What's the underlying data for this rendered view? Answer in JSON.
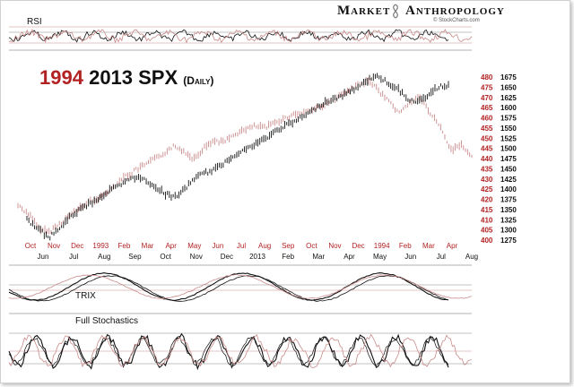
{
  "header": {
    "brand_left": "Market",
    "brand_right": "Anthropology",
    "logo_icon": "dna-helix-icon",
    "source": "© StockCharts.com"
  },
  "panels": {
    "rsi_label": "RSI",
    "trix_label": "TRIX",
    "stoch_label": "Full Stochastics"
  },
  "chart_data": {
    "type": "line",
    "title": {
      "year_1994": "1994",
      "year_2013": "2013 SPX",
      "freq": "(Daily)"
    },
    "colors": {
      "series_1994": "#c98a8a",
      "series_2013": "#111111",
      "axis_1994": "#b22222",
      "axis_2013": "#111111"
    },
    "x_top_labels": [
      "Oct",
      "Nov",
      "Dec",
      "1993",
      "Feb",
      "Mar",
      "Apr",
      "May",
      "Jun",
      "Jul",
      "Aug",
      "Sep",
      "Oct",
      "Nov",
      "Dec",
      "1994",
      "Feb",
      "Mar",
      "Apr"
    ],
    "x_bottom_labels": [
      "Jun",
      "Jul",
      "Aug",
      "Sep",
      "Oct",
      "Nov",
      "Dec",
      "2013",
      "Feb",
      "Mar",
      "Apr",
      "May",
      "Jun",
      "Jul",
      "Aug"
    ],
    "y_1994": [
      400,
      405,
      410,
      415,
      420,
      425,
      430,
      435,
      440,
      445,
      450,
      455,
      460,
      465,
      470,
      475,
      480
    ],
    "y_2013": [
      1275,
      1300,
      1325,
      1350,
      1375,
      1400,
      1425,
      1450,
      1475,
      1500,
      1525,
      1550,
      1575,
      1600,
      1625,
      1650,
      1675
    ],
    "series": [
      {
        "name": "1994",
        "key": "1994",
        "values": [
          417,
          413,
          406,
          404,
          408,
          412,
          416,
          419,
          421,
          425,
          430,
          433,
          436,
          439,
          442,
          446,
          444,
          440,
          445,
          449,
          448,
          452,
          454,
          456,
          455,
          458,
          460,
          462,
          463,
          465,
          467,
          470,
          473,
          476,
          479,
          473,
          468,
          462,
          468,
          470,
          462,
          455,
          444,
          447,
          441
        ]
      },
      {
        "name": "2013 SPX",
        "key": "2013",
        "values": [
          1325,
          1305,
          1280,
          1300,
          1330,
          1350,
          1365,
          1380,
          1400,
          1410,
          1430,
          1425,
          1410,
          1390,
          1380,
          1400,
          1430,
          1440,
          1450,
          1470,
          1490,
          1500,
          1515,
          1530,
          1550,
          1560,
          1575,
          1590,
          1610,
          1620,
          1630,
          1645,
          1660,
          1680,
          1665,
          1650,
          1625,
          1610,
          1630,
          1650,
          1655
        ]
      }
    ],
    "grid": false,
    "legend": "none"
  }
}
